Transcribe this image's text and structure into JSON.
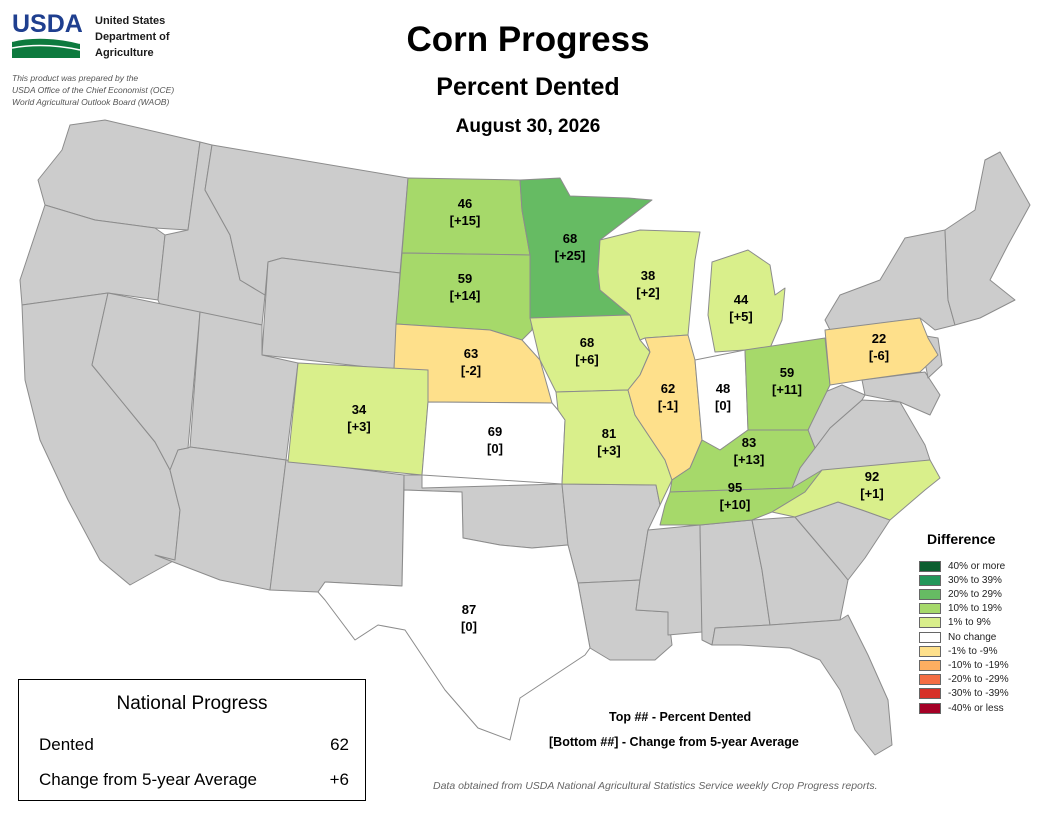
{
  "agency": {
    "line1": "United States",
    "line2": "Department of",
    "line3": "Agriculture",
    "logo_text": "USDA"
  },
  "prepared_by": {
    "line1": "This product was prepared by the",
    "line2": "USDA Office of the Chief Economist (OCE)",
    "line3": "World Agricultural Outlook Board (WAOB)"
  },
  "title": "Corn Progress",
  "subtitle": "Percent Dented",
  "date": "August 30, 2026",
  "legend": {
    "title": "Difference",
    "items": [
      {
        "label": "40% or more",
        "color": "#0b5e2f"
      },
      {
        "label": "30% to 39%",
        "color": "#23975a"
      },
      {
        "label": "20% to 29%",
        "color": "#66bb63"
      },
      {
        "label": "10% to 19%",
        "color": "#a6d96a"
      },
      {
        "label": "1% to 9%",
        "color": "#d9ef8b"
      },
      {
        "label": "No change",
        "color": "#ffffff"
      },
      {
        "label": "-1% to -9%",
        "color": "#fee08b"
      },
      {
        "label": "-10% to -19%",
        "color": "#fdae61"
      },
      {
        "label": "-20% to -29%",
        "color": "#f46d43"
      },
      {
        "label": "-30% to -39%",
        "color": "#d73027"
      },
      {
        "label": "-40% or less",
        "color": "#a50026"
      }
    ]
  },
  "national": {
    "title": "National Progress",
    "dented_label": "Dented",
    "dented_value": "62",
    "change_label": "Change from 5-year Average",
    "change_value": "+6"
  },
  "key": {
    "top": "Top ## - Percent Dented",
    "bottom": "[Bottom ##] - Change from 5-year Average"
  },
  "source": "Data obtained from USDA National Agricultural Statistics Service weekly Crop Progress reports.",
  "colors": {
    "no_data": "#cccccc",
    "border": "#8c8c8c"
  },
  "states": {
    "ND": {
      "value": "46",
      "change": "[+15]",
      "color": "#a6d96a"
    },
    "SD": {
      "value": "59",
      "change": "[+14]",
      "color": "#a6d96a"
    },
    "MN": {
      "value": "68",
      "change": "[+25]",
      "color": "#66bb63"
    },
    "NE": {
      "value": "63",
      "change": "[-2]",
      "color": "#fee08b"
    },
    "CO": {
      "value": "34",
      "change": "[+3]",
      "color": "#d9ef8b"
    },
    "KS": {
      "value": "69",
      "change": "[0]",
      "color": "#ffffff"
    },
    "IA": {
      "value": "68",
      "change": "[+6]",
      "color": "#d9ef8b"
    },
    "MO": {
      "value": "81",
      "change": "[+3]",
      "color": "#d9ef8b"
    },
    "WI": {
      "value": "38",
      "change": "[+2]",
      "color": "#d9ef8b"
    },
    "IL": {
      "value": "62",
      "change": "[-1]",
      "color": "#fee08b"
    },
    "IN": {
      "value": "48",
      "change": "[0]",
      "color": "#ffffff"
    },
    "MI": {
      "value": "44",
      "change": "[+5]",
      "color": "#d9ef8b"
    },
    "OH": {
      "value": "59",
      "change": "[+11]",
      "color": "#a6d96a"
    },
    "KY": {
      "value": "83",
      "change": "[+13]",
      "color": "#a6d96a"
    },
    "TN": {
      "value": "95",
      "change": "[+10]",
      "color": "#a6d96a"
    },
    "NC": {
      "value": "92",
      "change": "[+1]",
      "color": "#d9ef8b"
    },
    "PA": {
      "value": "22",
      "change": "[-6]",
      "color": "#fee08b"
    },
    "TX": {
      "value": "87",
      "change": "[0]",
      "color": "#ffffff"
    }
  }
}
